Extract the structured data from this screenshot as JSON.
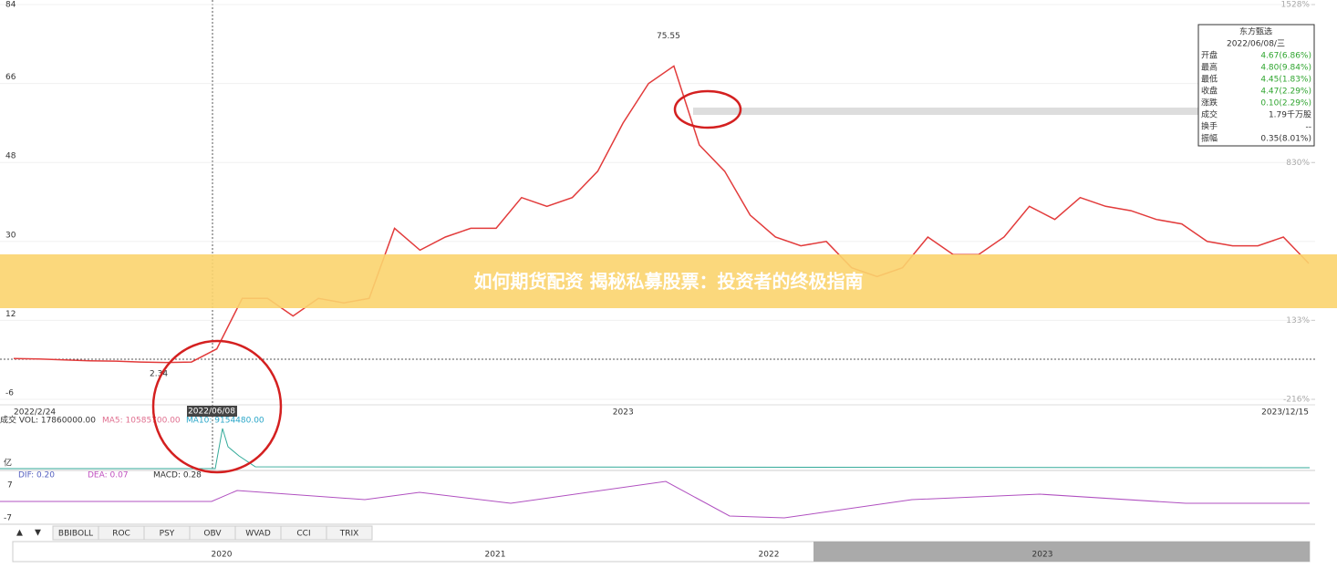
{
  "chart_data": {
    "type": "line",
    "color": "#e23b3b",
    "categories": [
      "2022/2/24",
      null,
      null,
      null,
      null,
      null,
      null,
      null,
      null,
      null,
      null,
      null,
      null,
      null,
      null,
      null,
      null,
      null,
      null,
      null,
      null,
      null,
      null,
      null,
      "2023",
      null,
      null,
      null,
      null,
      null,
      null,
      null,
      null,
      null,
      null,
      null,
      null,
      null,
      null,
      null,
      null,
      null,
      null,
      null,
      null,
      null,
      null,
      null,
      null,
      null,
      null,
      "2023/12/15"
    ],
    "values": [
      3.3,
      3.2,
      3.0,
      2.8,
      2.7,
      2.5,
      2.4,
      2.5,
      5.5,
      17,
      17,
      13,
      17,
      16,
      17,
      33,
      28,
      31,
      33,
      33,
      40,
      38,
      40,
      46,
      57,
      66,
      70,
      52,
      46,
      36,
      31,
      29,
      30,
      24,
      22,
      24,
      31,
      27,
      27,
      31,
      38,
      35,
      40,
      38,
      37,
      35,
      34,
      30,
      29,
      29,
      31,
      25
    ],
    "ylim": [
      -6,
      84
    ],
    "yticks": [
      84,
      66,
      48,
      30,
      12,
      -6
    ],
    "y2lim": [
      -216,
      1528
    ],
    "y2ticks": [
      {
        "value": 1528,
        "label": "1528%"
      },
      {
        "value": 830,
        "label": "830%"
      },
      {
        "value": 133,
        "label": "133%"
      },
      {
        "value": -216,
        "label": "-216%"
      }
    ],
    "max_value": 75.55,
    "min_value": 2.34,
    "cursor_label": "2022/06/08"
  },
  "info_panel": {
    "title": "东方甄选",
    "date": "2022/06/08/三",
    "rows": [
      [
        "开盘",
        "4.67(6.86%)"
      ],
      [
        "最高",
        "4.80(9.84%)"
      ],
      [
        "最低",
        "4.45(1.83%)"
      ],
      [
        "收盘",
        "4.47(2.29%)"
      ],
      [
        "涨跌",
        "0.10(2.29%)"
      ],
      [
        "成交",
        "1.79千万股"
      ],
      [
        "换手",
        "--"
      ],
      [
        "振幅",
        "0.35(8.01%)"
      ]
    ]
  },
  "volume_panel": {
    "vol": "成交 VOL: 17860000.00",
    "ma5": "MA5: 10585700.00",
    "ma10": "MA10: 9154480.00",
    "unit": "亿"
  },
  "macd_panel": {
    "dif": "DIF: 0.20",
    "dea": "DEA: 0.07",
    "macd": "MACD: 0.28",
    "top": "7",
    "bottom": "-7"
  },
  "tabs": [
    "BBIBOLL",
    "ROC",
    "PSY",
    "OBV",
    "WVAD",
    "CCI",
    "TRIX"
  ],
  "navigator": [
    "2020",
    "2021",
    "2022",
    "2023"
  ],
  "banner": "如何期货配资 揭秘私募股票：投资者的终极指南"
}
